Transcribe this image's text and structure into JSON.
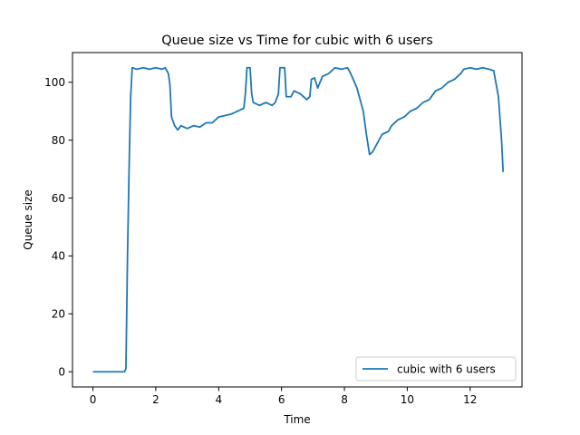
{
  "chart_data": {
    "type": "line",
    "title": "Queue size vs Time for cubic with 6 users",
    "xlabel": "Time",
    "ylabel": "Queue size",
    "xlim": [
      -0.65,
      13.65
    ],
    "ylim": [
      -5.25,
      110.25
    ],
    "xticks": [
      0,
      2,
      4,
      6,
      8,
      10,
      12
    ],
    "yticks": [
      0,
      20,
      40,
      60,
      80,
      100
    ],
    "grid": false,
    "legend_position": "lower right",
    "series": [
      {
        "name": "cubic with 6 users",
        "color": "#1f77b4",
        "points": [
          [
            0.0,
            0
          ],
          [
            0.5,
            0
          ],
          [
            1.0,
            0
          ],
          [
            1.05,
            1
          ],
          [
            1.1,
            40
          ],
          [
            1.15,
            70
          ],
          [
            1.2,
            95
          ],
          [
            1.25,
            105
          ],
          [
            1.4,
            104.5
          ],
          [
            1.6,
            105
          ],
          [
            1.8,
            104.5
          ],
          [
            2.0,
            105
          ],
          [
            2.2,
            104.5
          ],
          [
            2.3,
            105
          ],
          [
            2.4,
            103
          ],
          [
            2.45,
            99
          ],
          [
            2.5,
            88
          ],
          [
            2.6,
            85
          ],
          [
            2.7,
            83.5
          ],
          [
            2.8,
            85
          ],
          [
            3.0,
            84
          ],
          [
            3.2,
            85
          ],
          [
            3.4,
            84.5
          ],
          [
            3.6,
            86
          ],
          [
            3.8,
            86
          ],
          [
            4.0,
            88
          ],
          [
            4.2,
            88.5
          ],
          [
            4.4,
            89
          ],
          [
            4.6,
            90
          ],
          [
            4.8,
            91
          ],
          [
            4.85,
            96
          ],
          [
            4.9,
            105
          ],
          [
            5.0,
            105
          ],
          [
            5.05,
            96
          ],
          [
            5.1,
            93
          ],
          [
            5.3,
            92
          ],
          [
            5.5,
            93
          ],
          [
            5.7,
            92
          ],
          [
            5.8,
            93
          ],
          [
            5.9,
            96
          ],
          [
            5.95,
            105
          ],
          [
            6.1,
            105
          ],
          [
            6.15,
            95
          ],
          [
            6.3,
            95
          ],
          [
            6.4,
            97
          ],
          [
            6.6,
            96
          ],
          [
            6.8,
            94
          ],
          [
            6.9,
            95
          ],
          [
            6.95,
            101
          ],
          [
            7.05,
            101.5
          ],
          [
            7.15,
            98
          ],
          [
            7.3,
            102
          ],
          [
            7.5,
            103
          ],
          [
            7.7,
            105
          ],
          [
            7.9,
            104.5
          ],
          [
            8.1,
            105
          ],
          [
            8.2,
            103
          ],
          [
            8.4,
            98
          ],
          [
            8.6,
            90
          ],
          [
            8.7,
            82
          ],
          [
            8.8,
            75
          ],
          [
            8.9,
            76
          ],
          [
            9.0,
            78
          ],
          [
            9.2,
            82
          ],
          [
            9.4,
            83
          ],
          [
            9.5,
            85
          ],
          [
            9.7,
            87
          ],
          [
            9.9,
            88
          ],
          [
            10.1,
            90
          ],
          [
            10.3,
            91
          ],
          [
            10.5,
            93
          ],
          [
            10.7,
            94
          ],
          [
            10.9,
            97
          ],
          [
            11.1,
            98
          ],
          [
            11.3,
            100
          ],
          [
            11.5,
            101
          ],
          [
            11.7,
            103
          ],
          [
            11.8,
            104.5
          ],
          [
            12.0,
            105
          ],
          [
            12.2,
            104.5
          ],
          [
            12.4,
            105
          ],
          [
            12.6,
            104.5
          ],
          [
            12.75,
            104
          ],
          [
            12.8,
            101
          ],
          [
            12.9,
            95
          ],
          [
            13.0,
            80
          ],
          [
            13.05,
            69
          ]
        ]
      }
    ]
  }
}
